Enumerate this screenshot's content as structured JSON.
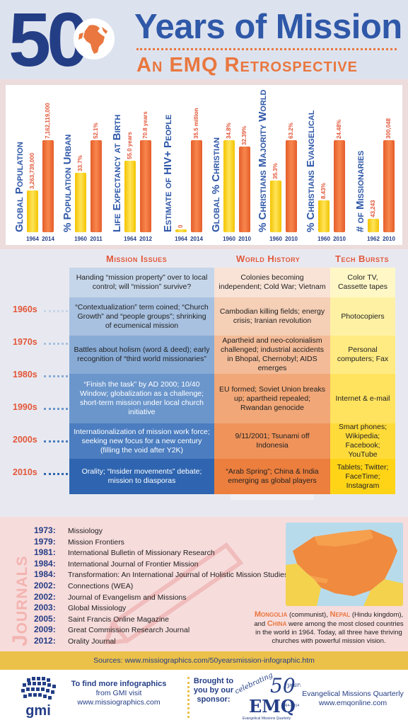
{
  "header": {
    "big_number": "50",
    "title": "Years of Mission",
    "subtitle": "An EMQ Retrospective"
  },
  "colors": {
    "navy": "#243e86",
    "blue": "#2f58a8",
    "orange": "#e9773f",
    "yellow": "#f3c400",
    "red_label": "#e2573a"
  },
  "chart_data": [
    {
      "type": "bar",
      "title": "Global Population",
      "categories": [
        "1964",
        "2014"
      ],
      "values": [
        3263739000,
        7162119000
      ],
      "labels": [
        "3,263,739,000",
        "7,162,119,000"
      ]
    },
    {
      "type": "bar",
      "title": "% Population Urban",
      "categories": [
        "1960",
        "2011"
      ],
      "values": [
        33.7,
        52.1
      ],
      "labels": [
        "33.7%",
        "52.1%"
      ]
    },
    {
      "type": "bar",
      "title": "Life Expectancy at Birth",
      "categories": [
        "1964",
        "2012"
      ],
      "values": [
        55.0,
        70.8
      ],
      "labels": [
        "55.0 years",
        "70.8 years"
      ]
    },
    {
      "type": "bar",
      "title": "Estimate of HIV+ People",
      "categories": [
        "1964",
        "2014"
      ],
      "values": [
        0,
        35.5
      ],
      "labels": [
        "0",
        "35.5 million"
      ]
    },
    {
      "type": "bar",
      "title": "Global % Christian",
      "categories": [
        "1960",
        "2010"
      ],
      "values": [
        34.8,
        32.39
      ],
      "labels": [
        "34.8%",
        "32.39%"
      ]
    },
    {
      "type": "bar",
      "title": "% Christians Majority World",
      "categories": [
        "1960",
        "2010"
      ],
      "values": [
        35.3,
        63.2
      ],
      "labels": [
        "35.3%",
        "63.2%"
      ]
    },
    {
      "type": "bar",
      "title": "% Christians Evangelical",
      "categories": [
        "1960",
        "2010"
      ],
      "values": [
        8.43,
        24.48
      ],
      "labels": [
        "8.43%",
        "24.48%"
      ]
    },
    {
      "type": "bar",
      "title": "# of Missionaries",
      "categories": [
        "1962",
        "2010"
      ],
      "values": [
        43243,
        300048
      ],
      "labels": [
        "43,243",
        "300,048"
      ]
    }
  ],
  "timeline": {
    "headers": {
      "mission": "Mission Issues",
      "world": "World History",
      "tech": "Tech Bursts"
    },
    "decades": [
      "1960s",
      "1970s",
      "1980s",
      "1990s",
      "2000s",
      "2010s"
    ],
    "rows": [
      {
        "mission": "Handing “mission property” over to local control; will “mission” survive?",
        "world": "Colonies becoming independent; Cold War; Vietnam",
        "tech": "Color TV, Cassette tapes"
      },
      {
        "mission": "“Contextualization” term coined; “Church Growth” and “people groups”; shrinking of ecumenical mission",
        "world": "Cambodian killing fields; energy crisis; Iranian revolution",
        "tech": "Photocopiers"
      },
      {
        "mission": "Battles about holism (word & deed); early recognition of “third world missionaries”",
        "world": "Apartheid and neo-colonialism challenged; industrial accidents in Bhopal, Chernobyl; AIDS emerges",
        "tech": "Personal computers; Fax"
      },
      {
        "mission": "“Finish the task” by AD 2000; 10/40 Window; globalization as a challenge; short-term mission under local church initiative",
        "world": "EU formed; Soviet Union breaks up; apartheid repealed; Rwandan genocide",
        "tech": "Internet & e-mail"
      },
      {
        "mission": "Internationalization of mission work force; seeking new focus for a new century (filling the void after Y2K)",
        "world": "9/11/2001; Tsunami off Indonesia",
        "tech": "Smart phones; Wikipedia; Facebook; YouTube"
      },
      {
        "mission": "Orality; “Insider movements” debate; mission to diasporas",
        "world": "“Arab Spring”; China & India emerging as global players",
        "tech": "Tablets; Twitter; FaceTime; Instagram"
      }
    ]
  },
  "journals": {
    "heading": "Journals",
    "items": [
      {
        "year": "1973:",
        "name": "Missiology"
      },
      {
        "year": "1979:",
        "name": "Mission Frontiers"
      },
      {
        "year": "1981:",
        "name": "International Bulletin of Missionary Research"
      },
      {
        "year": "1984:",
        "name": "International Journal of Frontier Mission"
      },
      {
        "year": "1984:",
        "name": "Transformation: An International Journal of Holistic Mission Studies"
      },
      {
        "year": "2002:",
        "name": "Connections (WEA)"
      },
      {
        "year": "2002:",
        "name": "Journal of Evangelism and Missions"
      },
      {
        "year": "2003:",
        "name": "Global Missiology"
      },
      {
        "year": "2005:",
        "name": "Saint Francis Online Magazine"
      },
      {
        "year": "2009:",
        "name": "Great Commission Research Journal"
      },
      {
        "year": "2012:",
        "name": "Orality Journal"
      }
    ],
    "map_caption": {
      "mongolia": "Mongolia",
      "mongolia_note": "(communist),",
      "nepal": "Nepal",
      "nepal_note": "(Hindu kingdom),",
      "and": "and",
      "china": "China",
      "rest": "were among the most closed countries in the world in 1964. Today, all three have thriving churches with powerful mission vision."
    }
  },
  "sources": "Sources: www.missiographics.com/50yearsmission-infographic.htm",
  "footer": {
    "gmi_logo_text": "gmi",
    "gmi_line1": "To find more infographics",
    "gmi_line2": "from GMI visit",
    "gmi_line3": "www.missiographics.com",
    "sponsor_line1": "Brought to",
    "sponsor_line2": "you by our",
    "sponsor_line3": "sponsor:",
    "emq_celebrating": "celebrating",
    "emq_50": "50",
    "emq_years": "years",
    "emq_letters": "EMQ",
    "emq_dates": "1964–2014",
    "emq_small": "Evangelical Missions Quarterly",
    "emq_name": "Evangelical Missions Quarterly",
    "emq_url": "www.emqonline.com"
  }
}
